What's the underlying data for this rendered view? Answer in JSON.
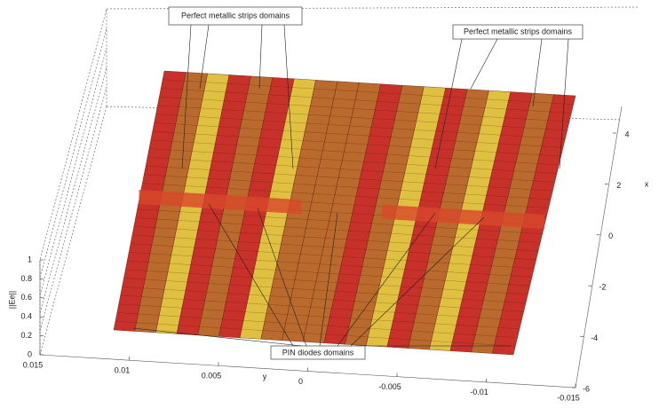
{
  "chart_data": {
    "type": "surface",
    "zlabel": "||Ee||",
    "ylabel": "y",
    "xlabel": "x",
    "zlim": [
      0,
      1
    ],
    "zticks": [
      0,
      0.2,
      0.4,
      0.6,
      0.8,
      1
    ],
    "ylim": [
      0.015,
      -0.015
    ],
    "yticks": [
      0.015,
      0.01,
      0.005,
      0,
      -0.005,
      -0.01,
      -0.015
    ],
    "xlim": [
      -6,
      4
    ],
    "xticks": [
      4,
      2,
      0,
      -2,
      -4,
      -6
    ],
    "annotations": [
      "Perfect metallic strips domains",
      "Perfect metallic strips domains",
      "PIN diodes domains"
    ]
  }
}
